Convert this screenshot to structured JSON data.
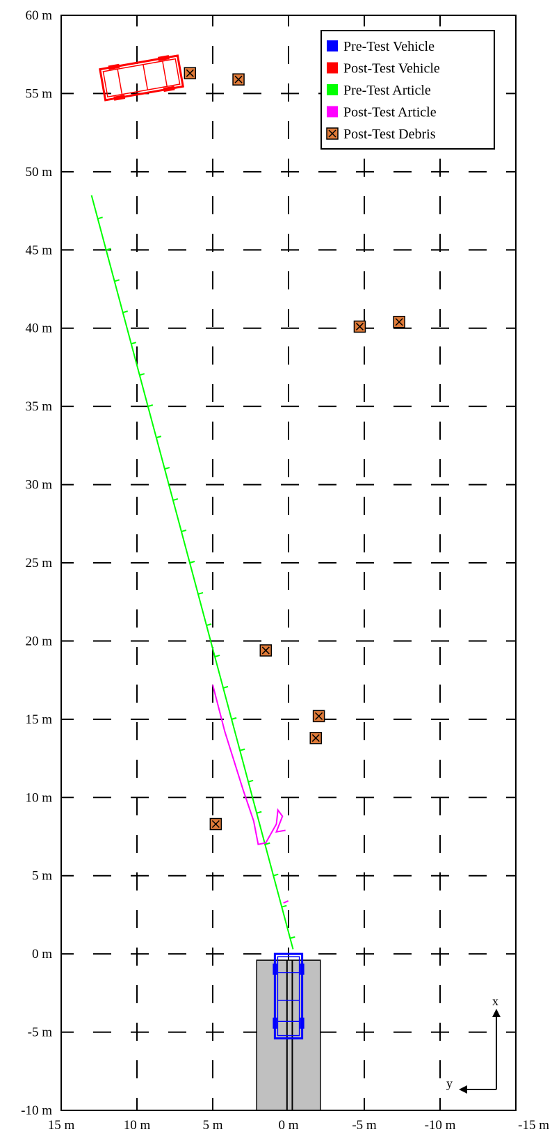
{
  "chart_data": {
    "type": "scatter",
    "x_axis": {
      "ticks": [
        15,
        10,
        5,
        0,
        -5,
        -10,
        -15
      ],
      "tick_labels": [
        "15 m",
        "10 m",
        "5 m",
        "0 m",
        "-5 m",
        "-10 m",
        "-15 m"
      ],
      "range": [
        15,
        -15
      ]
    },
    "y_axis": {
      "ticks": [
        60,
        55,
        50,
        45,
        40,
        35,
        30,
        25,
        20,
        15,
        10,
        5,
        0,
        -5,
        -10
      ],
      "tick_labels": [
        "60 m",
        "55 m",
        "50 m",
        "45 m",
        "40 m",
        "35 m",
        "30 m",
        "25 m",
        "20 m",
        "15 m",
        "10 m",
        "5 m",
        "0 m",
        "-5 m",
        "-10 m"
      ],
      "range": [
        -10,
        60
      ]
    },
    "grid": "dashed",
    "legend_position": "top-right",
    "legend": [
      {
        "label": "Pre-Test Vehicle",
        "color": "#0000ff",
        "marker": "square"
      },
      {
        "label": "Post-Test Vehicle",
        "color": "#ff0000",
        "marker": "square"
      },
      {
        "label": "Pre-Test Article",
        "color": "#00ff00",
        "marker": "square"
      },
      {
        "label": "Post-Test Article",
        "color": "#ff00ff",
        "marker": "square"
      },
      {
        "label": "Post-Test Debris",
        "color": "#e07b39",
        "marker": "crossed-square"
      }
    ],
    "series": [
      {
        "name": "Pre-Test Article",
        "kind": "line",
        "color": "#00ff00",
        "points": [
          [
            -0.3,
            0.3
          ],
          [
            13.0,
            48.5
          ]
        ],
        "tick_marks_y": [
          1,
          3,
          5,
          7,
          9,
          11,
          13,
          15,
          17,
          19,
          21,
          23,
          25,
          27,
          29,
          31,
          33,
          35,
          37,
          39,
          41,
          43,
          45,
          47
        ]
      },
      {
        "name": "Post-Test Article",
        "kind": "line",
        "color": "#ff00ff",
        "points": [
          [
            5.0,
            17.2
          ],
          [
            4.2,
            14.2
          ],
          [
            3.0,
            10.5
          ],
          [
            2.3,
            8.5
          ],
          [
            2.0,
            7.0
          ],
          [
            1.5,
            7.1
          ],
          [
            0.8,
            8.3
          ],
          [
            0.7,
            9.2
          ],
          [
            0.4,
            8.8
          ],
          [
            0.8,
            7.8
          ],
          [
            0.2,
            7.9
          ]
        ],
        "extra_points": [
          [
            0.2,
            3.3
          ]
        ]
      },
      {
        "name": "Post-Test Debris",
        "kind": "marker",
        "color": "#e07b39",
        "points": [
          [
            6.5,
            56.3
          ],
          [
            3.3,
            55.9
          ],
          [
            -4.7,
            40.1
          ],
          [
            -7.3,
            40.4
          ],
          [
            1.5,
            19.4
          ],
          [
            -2.0,
            15.2
          ],
          [
            -1.8,
            13.8
          ],
          [
            4.8,
            8.3
          ]
        ]
      },
      {
        "name": "Post-Test Vehicle",
        "kind": "vehicle-outline",
        "color": "#ff0000",
        "center": [
          9.7,
          56.0
        ],
        "length_m": 5.2,
        "width_m": 2.0,
        "angle_deg": -10
      },
      {
        "name": "Pre-Test Vehicle",
        "kind": "vehicle-outline",
        "color": "#0000ff",
        "center": [
          0.0,
          -2.7
        ],
        "length_m": 5.4,
        "width_m": 1.8,
        "angle_deg": 0
      }
    ],
    "barrier_block": {
      "x_range": [
        2.1,
        -2.1
      ],
      "y_range": [
        -10,
        -0.4
      ],
      "color": "#c0c0c0"
    },
    "axis_indicator": {
      "x_label": "x",
      "y_label": "y"
    }
  }
}
